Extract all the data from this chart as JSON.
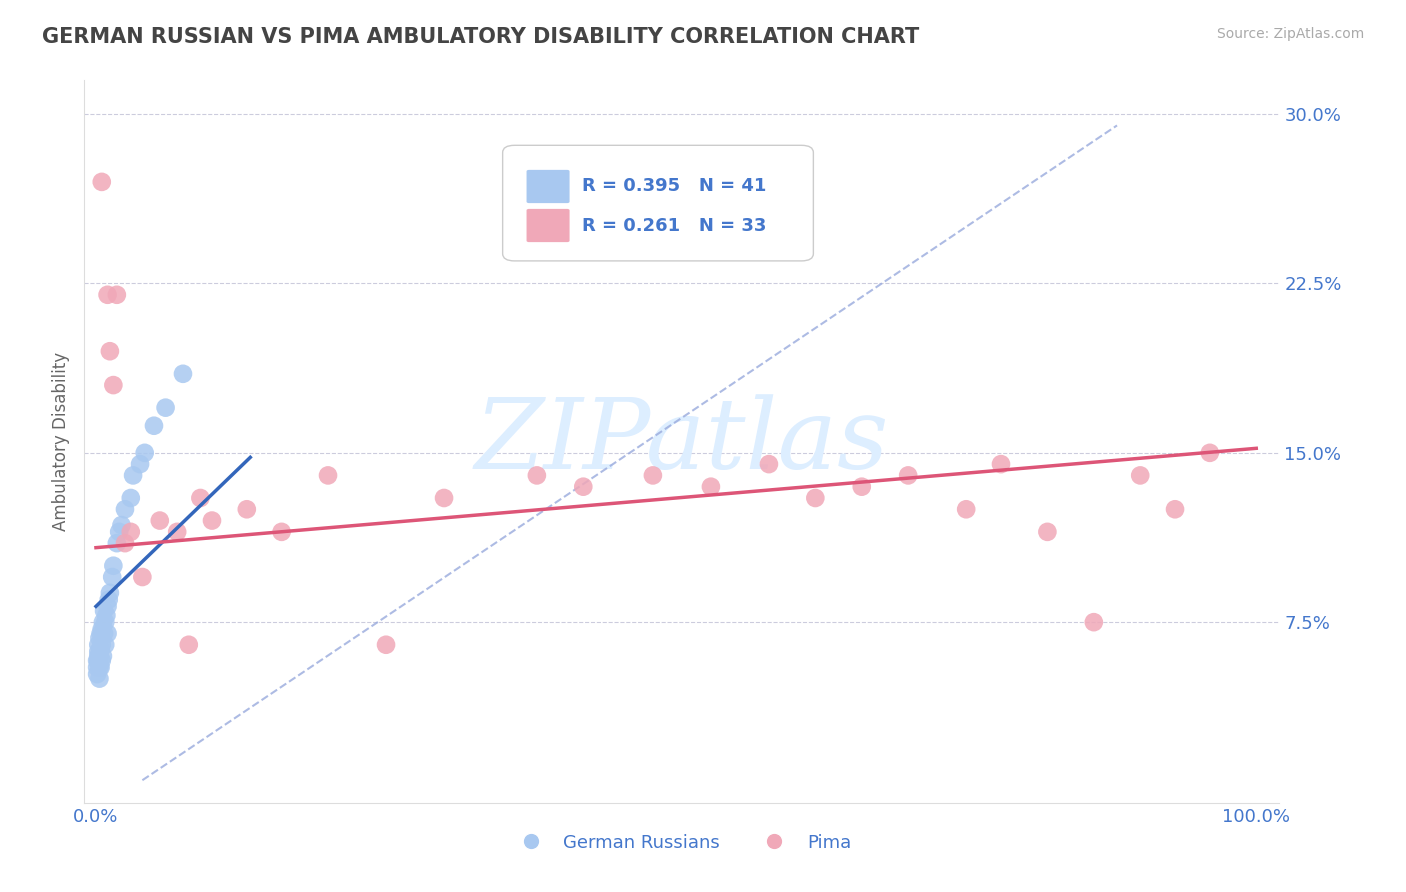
{
  "title": "GERMAN RUSSIAN VS PIMA AMBULATORY DISABILITY CORRELATION CHART",
  "source_text": "Source: ZipAtlas.com",
  "ylabel": "Ambulatory Disability",
  "xlim": [
    -0.01,
    1.02
  ],
  "ylim": [
    -0.005,
    0.315
  ],
  "xtick_positions": [
    0.0,
    0.25,
    0.5,
    0.75,
    1.0
  ],
  "xtick_labels": [
    "0.0%",
    "",
    "",
    "",
    "100.0%"
  ],
  "ytick_positions": [
    0.075,
    0.15,
    0.225,
    0.3
  ],
  "ytick_labels": [
    "7.5%",
    "15.0%",
    "22.5%",
    "30.0%"
  ],
  "blue_label": "German Russians",
  "pink_label": "Pima",
  "blue_R": "R = 0.395",
  "blue_N": "N = 41",
  "pink_R": "R = 0.261",
  "pink_N": "N = 33",
  "blue_color": "#A8C8F0",
  "pink_color": "#F0A8B8",
  "blue_line_color": "#3366BB",
  "pink_line_color": "#DD5577",
  "dash_line_color": "#99AADD",
  "background_color": "#FFFFFF",
  "title_color": "#444444",
  "axis_label_color": "#4477CC",
  "grid_color": "#CCCCDD",
  "watermark_color": "#DDEEFF",
  "german_russian_x": [
    0.001,
    0.001,
    0.001,
    0.002,
    0.002,
    0.002,
    0.002,
    0.003,
    0.003,
    0.003,
    0.003,
    0.004,
    0.004,
    0.004,
    0.005,
    0.005,
    0.005,
    0.006,
    0.006,
    0.007,
    0.007,
    0.008,
    0.008,
    0.009,
    0.01,
    0.01,
    0.011,
    0.012,
    0.014,
    0.015,
    0.018,
    0.02,
    0.022,
    0.025,
    0.03,
    0.032,
    0.038,
    0.042,
    0.05,
    0.06,
    0.075
  ],
  "german_russian_y": [
    0.052,
    0.055,
    0.058,
    0.06,
    0.062,
    0.058,
    0.065,
    0.055,
    0.06,
    0.068,
    0.05,
    0.063,
    0.07,
    0.055,
    0.072,
    0.065,
    0.058,
    0.075,
    0.06,
    0.07,
    0.08,
    0.065,
    0.075,
    0.078,
    0.082,
    0.07,
    0.085,
    0.088,
    0.095,
    0.1,
    0.11,
    0.115,
    0.118,
    0.125,
    0.13,
    0.14,
    0.145,
    0.15,
    0.162,
    0.17,
    0.185
  ],
  "pima_x": [
    0.005,
    0.01,
    0.012,
    0.015,
    0.018,
    0.025,
    0.03,
    0.04,
    0.055,
    0.07,
    0.08,
    0.09,
    0.1,
    0.13,
    0.16,
    0.2,
    0.25,
    0.3,
    0.38,
    0.42,
    0.48,
    0.53,
    0.58,
    0.62,
    0.66,
    0.7,
    0.75,
    0.78,
    0.82,
    0.86,
    0.9,
    0.93,
    0.96
  ],
  "pima_y": [
    0.27,
    0.22,
    0.195,
    0.18,
    0.22,
    0.11,
    0.115,
    0.095,
    0.12,
    0.115,
    0.065,
    0.13,
    0.12,
    0.125,
    0.115,
    0.14,
    0.065,
    0.13,
    0.14,
    0.135,
    0.14,
    0.135,
    0.145,
    0.13,
    0.135,
    0.14,
    0.125,
    0.145,
    0.115,
    0.075,
    0.14,
    0.125,
    0.15
  ],
  "blue_line_x": [
    0.0,
    0.133
  ],
  "blue_line_y": [
    0.082,
    0.148
  ],
  "pink_line_x": [
    0.0,
    1.0
  ],
  "pink_line_y": [
    0.108,
    0.152
  ],
  "dash_line_x": [
    0.04,
    0.88
  ],
  "dash_line_y": [
    0.005,
    0.295
  ]
}
